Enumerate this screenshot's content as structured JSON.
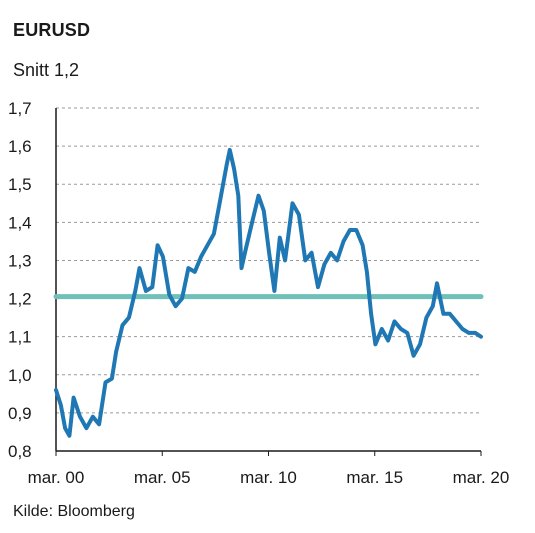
{
  "chart_data": {
    "type": "line",
    "title": "EURUSD",
    "subtitle": "Snitt 1,2",
    "source": "Kilde: Bloomberg",
    "ylim": [
      0.8,
      1.7
    ],
    "xlim": [
      2000.17,
      2020.17
    ],
    "yticks": [
      "0,8",
      "0,9",
      "1,0",
      "1,1",
      "1,2",
      "1,3",
      "1,4",
      "1,5",
      "1,6",
      "1,7"
    ],
    "xticks": [
      "mar. 00",
      "mar. 05",
      "mar. 10",
      "mar. 15",
      "mar. 20"
    ],
    "grid": true,
    "series": [
      {
        "name": "",
        "color": "#1f78b4",
        "x": [
          2000.17,
          2000.4,
          2000.6,
          2000.8,
          2001.0,
          2001.3,
          2001.6,
          2001.9,
          2002.2,
          2002.5,
          2002.8,
          2003.0,
          2003.3,
          2003.6,
          2003.9,
          2004.1,
          2004.4,
          2004.7,
          2004.95,
          2005.2,
          2005.5,
          2005.8,
          2006.1,
          2006.4,
          2006.7,
          2007.0,
          2007.3,
          2007.6,
          2007.9,
          2008.2,
          2008.35,
          2008.55,
          2008.75,
          2008.9,
          2009.1,
          2009.4,
          2009.7,
          2009.95,
          2010.2,
          2010.45,
          2010.7,
          2010.95,
          2011.3,
          2011.6,
          2011.9,
          2012.2,
          2012.5,
          2012.8,
          2013.1,
          2013.4,
          2013.7,
          2014.0,
          2014.3,
          2014.6,
          2014.8,
          2015.0,
          2015.2,
          2015.5,
          2015.8,
          2016.1,
          2016.4,
          2016.7,
          2017.0,
          2017.3,
          2017.6,
          2017.9,
          2018.1,
          2018.4,
          2018.7,
          2019.0,
          2019.3,
          2019.6,
          2019.9,
          2020.17
        ],
        "y": [
          0.96,
          0.92,
          0.86,
          0.84,
          0.94,
          0.89,
          0.86,
          0.89,
          0.87,
          0.98,
          0.99,
          1.06,
          1.13,
          1.15,
          1.22,
          1.28,
          1.22,
          1.23,
          1.34,
          1.31,
          1.21,
          1.18,
          1.2,
          1.28,
          1.27,
          1.31,
          1.34,
          1.37,
          1.46,
          1.55,
          1.59,
          1.54,
          1.47,
          1.28,
          1.33,
          1.4,
          1.47,
          1.43,
          1.32,
          1.22,
          1.36,
          1.3,
          1.45,
          1.42,
          1.3,
          1.32,
          1.23,
          1.29,
          1.32,
          1.3,
          1.35,
          1.38,
          1.38,
          1.34,
          1.27,
          1.16,
          1.08,
          1.12,
          1.09,
          1.14,
          1.12,
          1.11,
          1.05,
          1.08,
          1.15,
          1.18,
          1.24,
          1.16,
          1.16,
          1.14,
          1.12,
          1.11,
          1.11,
          1.1
        ]
      },
      {
        "name": "",
        "color": "#6fc0b8",
        "x": [
          2000.17,
          2020.17
        ],
        "y": [
          1.205,
          1.205
        ]
      }
    ]
  }
}
